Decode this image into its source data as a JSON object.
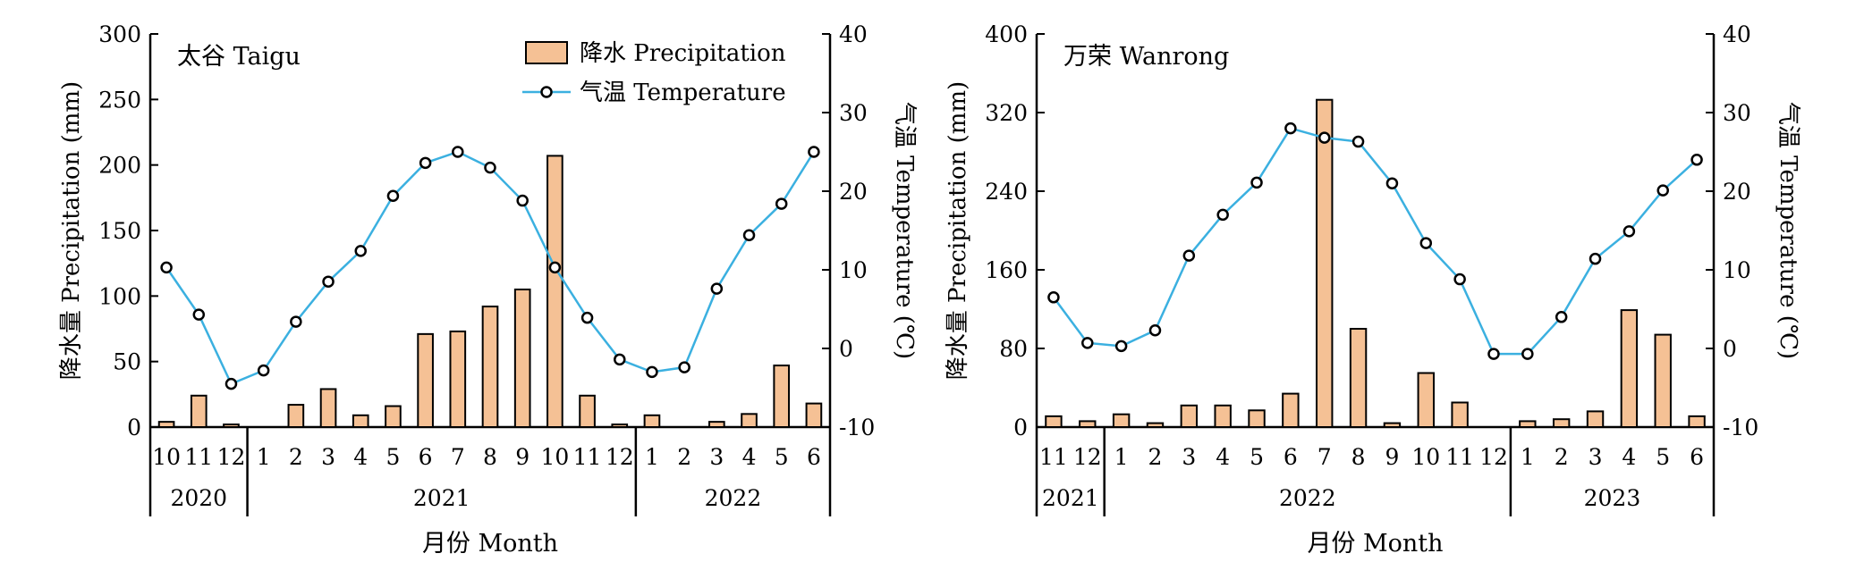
{
  "x_axis_label": "月份 Month",
  "chart_data": [
    {
      "type": "bar",
      "panel_label": "太谷 Taigu",
      "ylabel_left": "降水量 Precipitation (mm)",
      "ylabel_right": "气温 Temperature (℃)",
      "xlabel": "月份 Month",
      "ylim_left": [
        0,
        300
      ],
      "yticks_left": [
        0,
        50,
        100,
        150,
        200,
        250,
        300
      ],
      "ylim_right": [
        -10,
        40
      ],
      "yticks_right": [
        -10,
        0,
        10,
        20,
        30,
        40
      ],
      "categories": [
        "10",
        "11",
        "12",
        "1",
        "2",
        "3",
        "4",
        "5",
        "6",
        "7",
        "8",
        "9",
        "10",
        "11",
        "12",
        "1",
        "2",
        "3",
        "4",
        "5",
        "6"
      ],
      "year_groups": [
        {
          "label": "2020",
          "count": 3
        },
        {
          "label": "2021",
          "count": 12
        },
        {
          "label": "2022",
          "count": 6
        }
      ],
      "legend": {
        "position": "top-center",
        "precip_label": "降水 Precipitation",
        "temp_label": "气温 Temperature"
      },
      "series": [
        {
          "name": "降水 Precipitation",
          "kind": "bar",
          "axis": "left",
          "values": [
            4,
            24,
            2,
            0,
            17,
            29,
            9,
            16,
            71,
            73,
            92,
            105,
            207,
            24,
            2,
            9,
            0,
            4,
            10,
            47,
            18
          ]
        },
        {
          "name": "气温 Temperature",
          "kind": "line",
          "axis": "right",
          "values": [
            10.3,
            4.3,
            -4.5,
            -2.8,
            3.4,
            8.5,
            12.4,
            19.4,
            23.6,
            25.0,
            23.0,
            18.8,
            10.3,
            3.9,
            -1.4,
            -3.0,
            -2.4,
            7.6,
            14.4,
            18.4,
            25.0
          ]
        }
      ]
    },
    {
      "type": "bar",
      "panel_label": "万荣 Wanrong",
      "ylabel_left": "降水量 Precipitation (mm)",
      "ylabel_right": "气温 Temperature (℃)",
      "xlabel": "月份 Month",
      "ylim_left": [
        0,
        400
      ],
      "yticks_left": [
        0,
        80,
        160,
        240,
        320,
        400
      ],
      "ylim_right": [
        -10,
        40
      ],
      "yticks_right": [
        -10,
        0,
        10,
        20,
        30,
        40
      ],
      "categories": [
        "11",
        "12",
        "1",
        "2",
        "3",
        "4",
        "5",
        "6",
        "7",
        "8",
        "9",
        "10",
        "11",
        "12",
        "1",
        "2",
        "3",
        "4",
        "5",
        "6"
      ],
      "year_groups": [
        {
          "label": "2021",
          "count": 2
        },
        {
          "label": "2022",
          "count": 12
        },
        {
          "label": "2023",
          "count": 6
        }
      ],
      "series": [
        {
          "name": "降水 Precipitation",
          "kind": "bar",
          "axis": "left",
          "values": [
            11,
            6,
            13,
            4,
            22,
            22,
            17,
            34,
            333,
            100,
            4,
            55,
            25,
            0,
            6,
            8,
            16,
            119,
            94,
            11
          ]
        },
        {
          "name": "气温 Temperature",
          "kind": "line",
          "axis": "right",
          "values": [
            6.5,
            0.7,
            0.3,
            2.3,
            11.8,
            17.0,
            21.1,
            28.0,
            26.8,
            26.3,
            21.0,
            13.4,
            8.8,
            -0.7,
            -0.7,
            4.0,
            11.4,
            14.9,
            20.1,
            24.0
          ]
        }
      ]
    }
  ],
  "colors": {
    "bar_fill": "#F5C195",
    "bar_stroke": "#000000",
    "line": "#3BB0E0",
    "marker_fill": "#ffffff",
    "axis": "#000000"
  }
}
